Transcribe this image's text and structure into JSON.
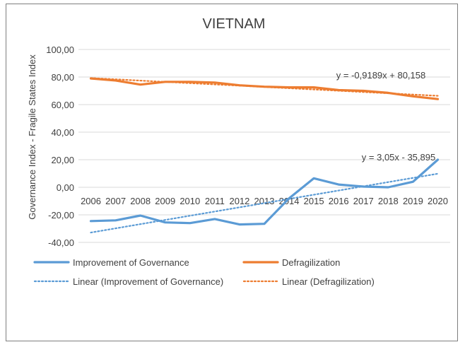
{
  "chart_data": {
    "type": "line",
    "title": "VIETNAM",
    "ylabel": "Governance Index - Fragile States Index",
    "xlabel": "",
    "ylim": [
      -40,
      100
    ],
    "y_ticks": [
      "-40,00",
      "-20,00",
      "0,00",
      "20,00",
      "40,00",
      "60,00",
      "80,00",
      "100,00"
    ],
    "categories": [
      "2006",
      "2007",
      "2008",
      "2009",
      "2010",
      "2011",
      "2012",
      "2013",
      "2014",
      "2015",
      "2016",
      "2017",
      "2018",
      "2019",
      "2020"
    ],
    "series": [
      {
        "name": "Improvement of Governance",
        "color": "#5b9bd5",
        "values": [
          -24.5,
          -24,
          -20.5,
          -25.5,
          -26,
          -23,
          -27,
          -26.5,
          -8,
          6.5,
          2,
          0.5,
          0,
          4,
          20
        ]
      },
      {
        "name": "Defragilization",
        "color": "#ed7d31",
        "values": [
          79,
          77.5,
          74.5,
          76.5,
          76.5,
          76,
          74,
          73,
          72.5,
          72.5,
          70.5,
          70,
          68.5,
          66,
          64
        ]
      }
    ],
    "trendlines": [
      {
        "name": "Linear (Improvement of Governance)",
        "series": "Improvement of Governance",
        "slope": 3.05,
        "intercept": -35.895,
        "color": "#5b9bd5",
        "equation": "y = 3,05x - 35,895"
      },
      {
        "name": "Linear (Defragilization)",
        "series": "Defragilization",
        "slope": -0.9189,
        "intercept": 80.158,
        "color": "#ed7d31",
        "equation": "y = -0,9189x + 80,158"
      }
    ],
    "legend": "bottom",
    "grid": true
  }
}
